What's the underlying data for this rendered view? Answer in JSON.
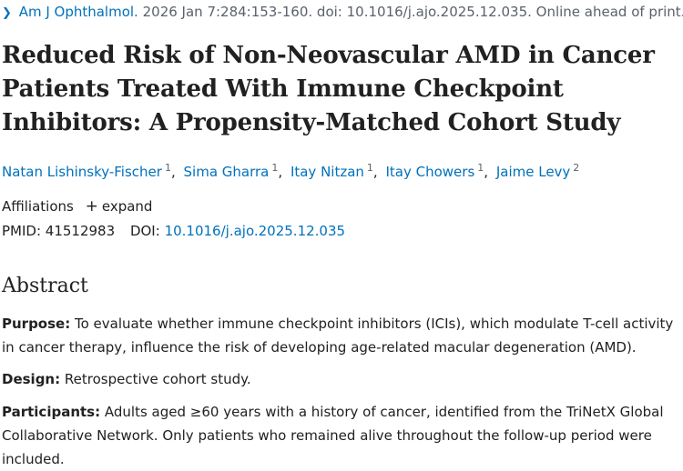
{
  "citation": {
    "journal": "Am J Ophthalmol.",
    "details": "2026 Jan 7:284:153-160. doi: 10.1016/j.ajo.2025.12.035. Online ahead of print."
  },
  "title": "Reduced Risk of Non-Neovascular AMD in Cancer Patients Treated With Immune Checkpoint Inhibitors: A Propensity-Matched Cohort Study",
  "authors": [
    {
      "name": "Natan Lishinsky-Fischer",
      "aff": "1"
    },
    {
      "name": "Sima Gharra",
      "aff": "1"
    },
    {
      "name": "Itay Nitzan",
      "aff": "1"
    },
    {
      "name": "Itay Chowers",
      "aff": "1"
    },
    {
      "name": "Jaime Levy",
      "aff": "2"
    }
  ],
  "affiliations": {
    "label": "Affiliations",
    "expand_label": "expand"
  },
  "ids": {
    "pmid_label": "PMID:",
    "pmid": "41512983",
    "doi_label": "DOI:",
    "doi": "10.1016/j.ajo.2025.12.035"
  },
  "abstract": {
    "heading": "Abstract",
    "purpose_label": "Purpose:",
    "purpose_text": "To evaluate whether immune checkpoint inhibitors (ICIs), which modulate T-cell activity in cancer therapy, influence the risk of developing age-related macular degeneration (AMD).",
    "design_label": "Design:",
    "design_text": "Retrospective cohort study.",
    "participants_label": "Participants:",
    "participants_text": "Adults aged ≥60 years with a history of cancer, identified from the TriNetX Global Collaborative Network. Only patients who remained alive throughout the follow-up period were included."
  }
}
